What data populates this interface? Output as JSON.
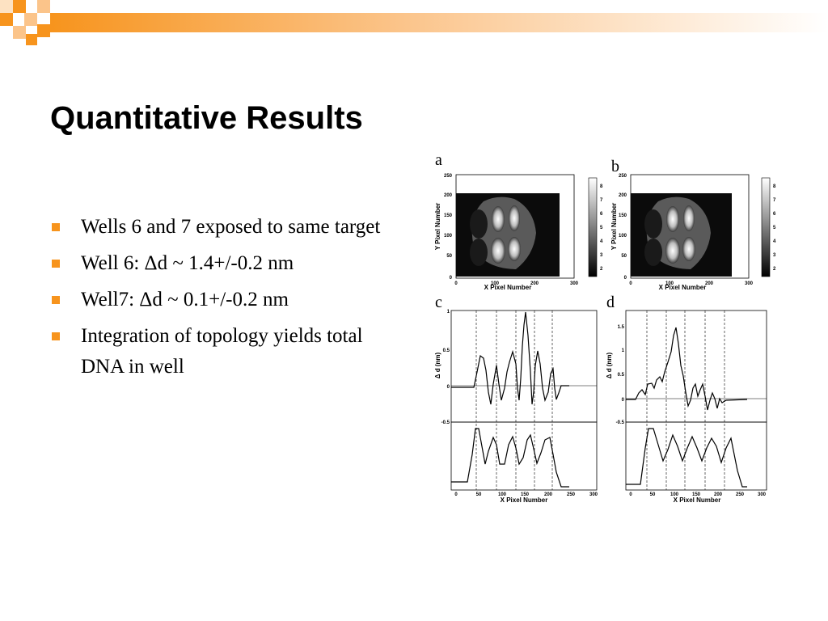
{
  "slide": {
    "title": "Quantitative Results",
    "accent_color": "#f7941d",
    "bullets": [
      "Wells 6 and 7 exposed to same target",
      "Well 6: Δd ~ 1.4+/-0.2 nm",
      "Well7: Δd ~ 0.1+/-0.2 nm",
      "Integration of topology yields total DNA in well"
    ]
  },
  "figure": {
    "panel_a_letter": "a",
    "panel_b_letter": "b",
    "panel_c_letter": "c",
    "panel_d_letter": "d",
    "image_x_label": "X Pixel Number",
    "image_y_label": "Y Pixel Number",
    "image_x_ticks": [
      "0",
      "100",
      "200",
      "300"
    ],
    "image_y_ticks": [
      "0",
      "50",
      "100",
      "150",
      "200",
      "250"
    ],
    "colorbar_ticks": [
      "8",
      "7",
      "6",
      "5",
      "4",
      "3",
      "2"
    ],
    "profile_y_label": "Δ d (nm)",
    "profile_x_label": "X Pixel Number",
    "c_y_ticks": [
      "1",
      "0.5",
      "0",
      "-0.5"
    ],
    "d_y_ticks": [
      "1.5",
      "1",
      "0.5",
      "0",
      "-0.5"
    ],
    "profile_x_ticks": [
      "0",
      "50",
      "100",
      "150",
      "200",
      "250",
      "300"
    ]
  }
}
